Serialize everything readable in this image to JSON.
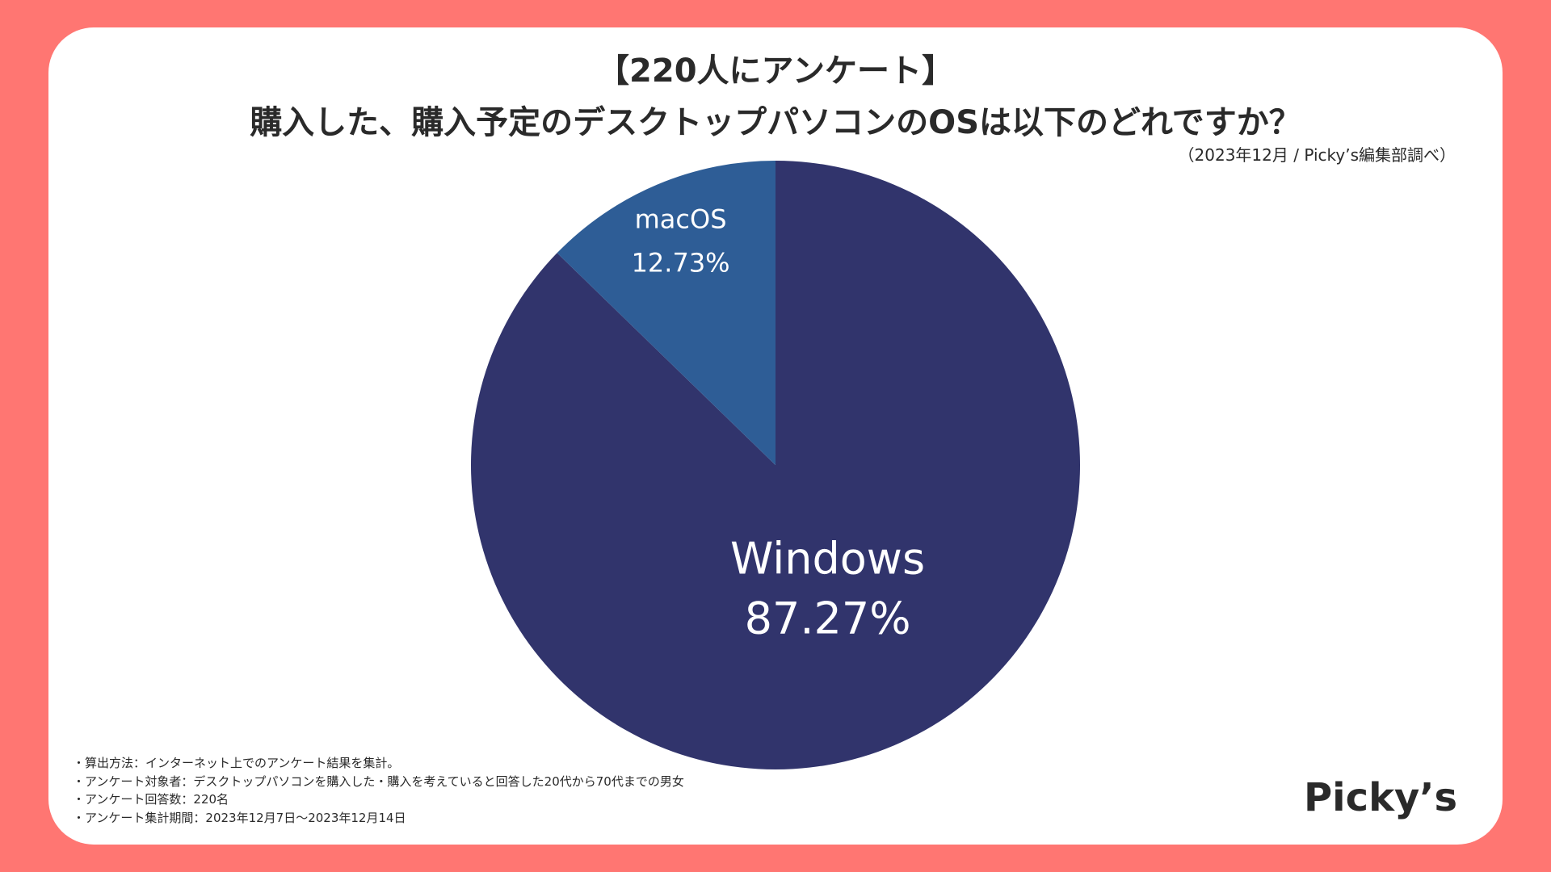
{
  "header": {
    "title_line1": "【220人にアンケート】",
    "title_line2": "購入した、購入予定のデスクトップパソコンのOSは以下のどれですか？",
    "source": "（2023年12月 / Picky’s編集部調べ）"
  },
  "chart_data": {
    "type": "pie",
    "title": "購入した、購入予定のデスクトップパソコンのOSは以下のどれですか？",
    "categories": [
      "Windows",
      "macOS"
    ],
    "values": [
      87.27,
      12.73
    ],
    "labels": [
      "87.27%",
      "12.73%"
    ],
    "colors": [
      "#31346C",
      "#2E5D96"
    ],
    "label_color": "#FFFFFF",
    "start_angle_deg": 0,
    "direction": "clockwise"
  },
  "notes": [
    "・算出方法：インターネット上でのアンケート結果を集計。",
    "・アンケート対象者：デスクトップパソコンを購入した・購入を考えていると回答した20代から70代までの男女",
    "・アンケート回答数：220名",
    "・アンケート集計期間：2023年12月7日〜2023年12月14日"
  ],
  "brand": {
    "logo_text": "Picky’s",
    "background_color": "#FF7672"
  }
}
